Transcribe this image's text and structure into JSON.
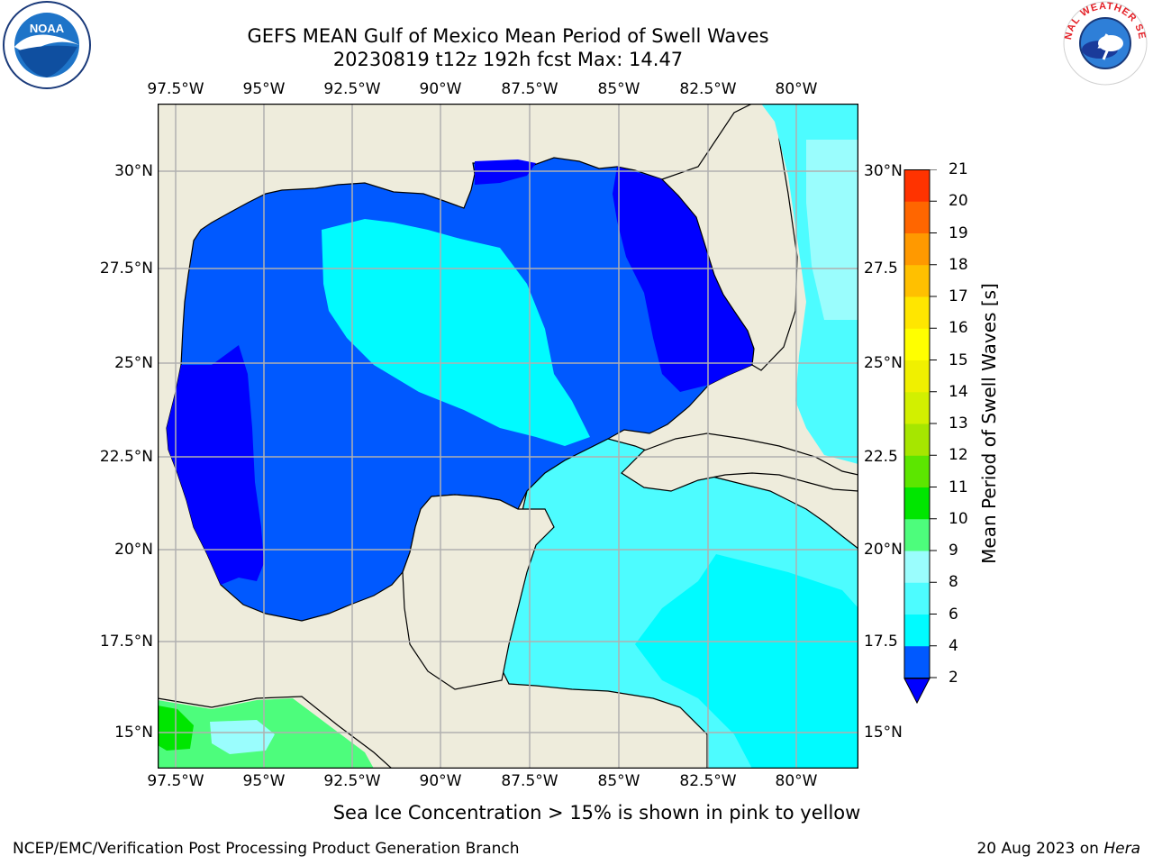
{
  "title_line1": "GEFS MEAN Gulf of Mexico Mean Period of Swell Waves",
  "title_line2": "20230819 t12z 192h fcst   Max: 14.47",
  "subtitle": "Sea Ice Concentration > 15% is shown in pink to yellow",
  "footer_left": "NCEP/EMC/Verification Post Processing Product Generation Branch",
  "footer_right_prefix": "20 Aug 2023 on ",
  "footer_right_host": "Hera",
  "logos": {
    "left": "NOAA",
    "right": "NATIONAL WEATHER SERVICE"
  },
  "map": {
    "lon_labels": [
      "97.5°W",
      "95°W",
      "92.5°W",
      "90°W",
      "87.5°W",
      "85°W",
      "82.5°W",
      "80°W"
    ],
    "lat_labels_left": [
      "30°N",
      "27.5°N",
      "25°N",
      "22.5°N",
      "20°N",
      "17.5°N",
      "15°N"
    ],
    "lat_labels_right": [
      "30°N",
      "27.5",
      "25°N",
      "22.5",
      "20°N",
      "17.5",
      "15°N"
    ],
    "colors": {
      "land": "#eeecdc",
      "coast": "#000000",
      "grid": "#b0b0b0"
    }
  },
  "colorbar": {
    "label": "Mean Period of Swell Waves [s]",
    "ticks": [
      "2",
      "4",
      "6",
      "8",
      "9",
      "10",
      "11",
      "12",
      "13",
      "14",
      "15",
      "16",
      "17",
      "18",
      "19",
      "20",
      "21"
    ],
    "colors": [
      "#0059ff",
      "#00fbff",
      "#4dfcff",
      "#9afdfd",
      "#4dfd7c",
      "#00e600",
      "#5ce600",
      "#a6e600",
      "#d2f000",
      "#f0f000",
      "#ffff00",
      "#ffe600",
      "#ffc000",
      "#ff9900",
      "#ff6600",
      "#ff3300"
    ],
    "extend_color": "#0000ff"
  }
}
